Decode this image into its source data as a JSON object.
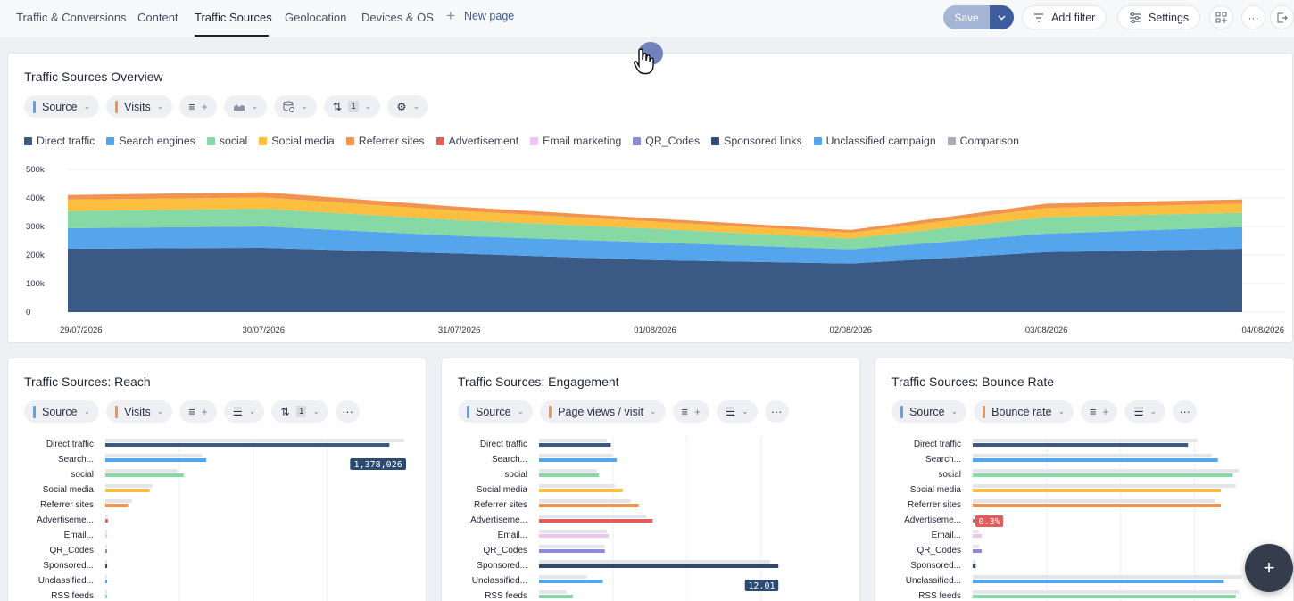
{
  "tabs": [
    {
      "label": "Traffic & Conversions",
      "active": false
    },
    {
      "label": "Content",
      "active": false
    },
    {
      "label": "Traffic Sources",
      "active": true
    },
    {
      "label": "Geolocation",
      "active": false
    },
    {
      "label": "Devices & OS",
      "active": false
    }
  ],
  "new_page_label": "New page",
  "toolbar": {
    "save_label": "Save",
    "add_filter_label": "Add filter",
    "settings_label": "Settings"
  },
  "overview": {
    "title": "Traffic Sources Overview",
    "chips": {
      "dimension": "Source",
      "metric": "Visits",
      "sort_count": "1"
    },
    "legend": [
      {
        "name": "Direct traffic",
        "color": "#3a5a85"
      },
      {
        "name": "Search engines",
        "color": "#55a5ec"
      },
      {
        "name": "social",
        "color": "#86d9a5"
      },
      {
        "name": "Social media",
        "color": "#fbbe3f"
      },
      {
        "name": "Referrer sites",
        "color": "#f0944f"
      },
      {
        "name": "Advertisement",
        "color": "#e25c5c"
      },
      {
        "name": "Email marketing",
        "color": "#f0c2ee"
      },
      {
        "name": "QR_Codes",
        "color": "#8a8ad8"
      },
      {
        "name": "Sponsored links",
        "color": "#2d4a70"
      },
      {
        "name": "Unclassified campaign",
        "color": "#55a5ec"
      },
      {
        "name": "Comparison",
        "color": "#a8acb5"
      }
    ]
  },
  "reach": {
    "title": "Traffic Sources: Reach",
    "chips": {
      "dimension": "Source",
      "metric": "Visits",
      "sort_count": "1"
    }
  },
  "engagement": {
    "title": "Traffic Sources: Engagement",
    "chips": {
      "dimension": "Source",
      "metric": "Page views / visit"
    }
  },
  "bounce": {
    "title": "Traffic Sources: Bounce Rate",
    "chips": {
      "dimension": "Source",
      "metric": "Bounce rate"
    }
  },
  "chart_data": [
    {
      "type": "area",
      "title": "Traffic Sources Overview",
      "x": [
        "29/07/2026",
        "30/07/2026",
        "31/07/2026",
        "01/08/2026",
        "02/08/2026",
        "03/08/2026",
        "04/08/2026"
      ],
      "ylim": [
        0,
        500000
      ],
      "yticks": [
        "0",
        "100k",
        "200k",
        "300k",
        "400k",
        "500k"
      ],
      "stacked": true,
      "series": [
        {
          "name": "Direct traffic",
          "color": "#3a5a85",
          "values": [
            222000,
            225000,
            205000,
            182000,
            170000,
            210000,
            222000
          ]
        },
        {
          "name": "Search engines",
          "color": "#55a5ec",
          "values": [
            72000,
            75000,
            62000,
            62000,
            50000,
            65000,
            76000
          ]
        },
        {
          "name": "social",
          "color": "#86d9a5",
          "values": [
            60000,
            62000,
            55000,
            48000,
            38000,
            58000,
            50000
          ]
        },
        {
          "name": "Social media",
          "color": "#fbbe3f",
          "values": [
            40000,
            40000,
            33000,
            25000,
            20000,
            32000,
            32000
          ]
        },
        {
          "name": "Referrer sites",
          "color": "#f0944f",
          "values": [
            16000,
            18000,
            14000,
            11000,
            10000,
            15000,
            15000
          ]
        }
      ]
    },
    {
      "type": "bar",
      "title": "Traffic Sources: Reach",
      "categories": [
        "Direct traffic",
        "Search...",
        "social",
        "Social media",
        "Referrer sites",
        "Advertiseme...",
        "Email...",
        "QR_Codes",
        "Sponsored...",
        "Unclassified...",
        "RSS feeds"
      ],
      "max": 1450000,
      "highlight": {
        "index": 0,
        "label": "1,378,026"
      },
      "series": [
        {
          "name": "Comparison",
          "values": [
            1450000,
            470000,
            350000,
            230000,
            130000,
            12000,
            10000,
            6000,
            5000,
            5000,
            5000
          ]
        },
        {
          "name": "Current",
          "values": [
            1378026,
            490000,
            380000,
            215000,
            110000,
            12000,
            8000,
            8000,
            9000,
            5000,
            8000
          ]
        }
      ],
      "colors": [
        "#3a5a85",
        "#55a5ec",
        "#86d9a5",
        "#fbbe3f",
        "#f0944f",
        "#e25c5c",
        "#f0c2ee",
        "#8a8ad8",
        "#2d4a70",
        "#55a5ec",
        "#86d9a5"
      ]
    },
    {
      "type": "bar",
      "title": "Traffic Sources: Engagement",
      "categories": [
        "Direct traffic",
        "Search...",
        "social",
        "Social media",
        "Referrer sites",
        "Advertiseme...",
        "Email...",
        "QR_Codes",
        "Sponsored...",
        "Unclassified...",
        "RSS feeds"
      ],
      "max": 15,
      "highlight": {
        "index": 8,
        "label": "12.01"
      },
      "series": [
        {
          "name": "Comparison",
          "values": [
            3.4,
            3.7,
            2.9,
            3.8,
            4.6,
            5.4,
            3.4,
            3.3,
            11.6,
            2.4,
            1.4
          ]
        },
        {
          "name": "Current",
          "values": [
            3.6,
            3.9,
            3.0,
            4.2,
            5.0,
            5.7,
            3.5,
            3.3,
            12.01,
            3.2,
            1.7
          ]
        }
      ],
      "colors": [
        "#3a5a85",
        "#55a5ec",
        "#86d9a5",
        "#fbbe3f",
        "#f0944f",
        "#e25c5c",
        "#f0c2ee",
        "#8a8ad8",
        "#2d4a70",
        "#55a5ec",
        "#86d9a5"
      ]
    },
    {
      "type": "bar",
      "title": "Traffic Sources: Bounce Rate",
      "categories": [
        "Direct traffic",
        "Search...",
        "social",
        "Social media",
        "Referrer sites",
        "Advertiseme...",
        "Email...",
        "QR_Codes",
        "Sponsored...",
        "Unclassified...",
        "RSS feeds"
      ],
      "max": 100,
      "highlight": {
        "index": 5,
        "label": "0.3%"
      },
      "series": [
        {
          "name": "Comparison",
          "values": [
            75,
            80,
            89,
            88,
            81,
            2,
            2,
            2,
            1,
            90,
            89
          ]
        },
        {
          "name": "Current",
          "values": [
            72,
            82,
            87,
            83,
            83,
            0.3,
            3,
            3,
            1,
            84,
            88
          ]
        }
      ],
      "colors": [
        "#3a5a85",
        "#55a5ec",
        "#86d9a5",
        "#fbbe3f",
        "#f0944f",
        "#e25c5c",
        "#f0c2ee",
        "#8a8ad8",
        "#2d4a70",
        "#55a5ec",
        "#86d9a5"
      ]
    }
  ]
}
